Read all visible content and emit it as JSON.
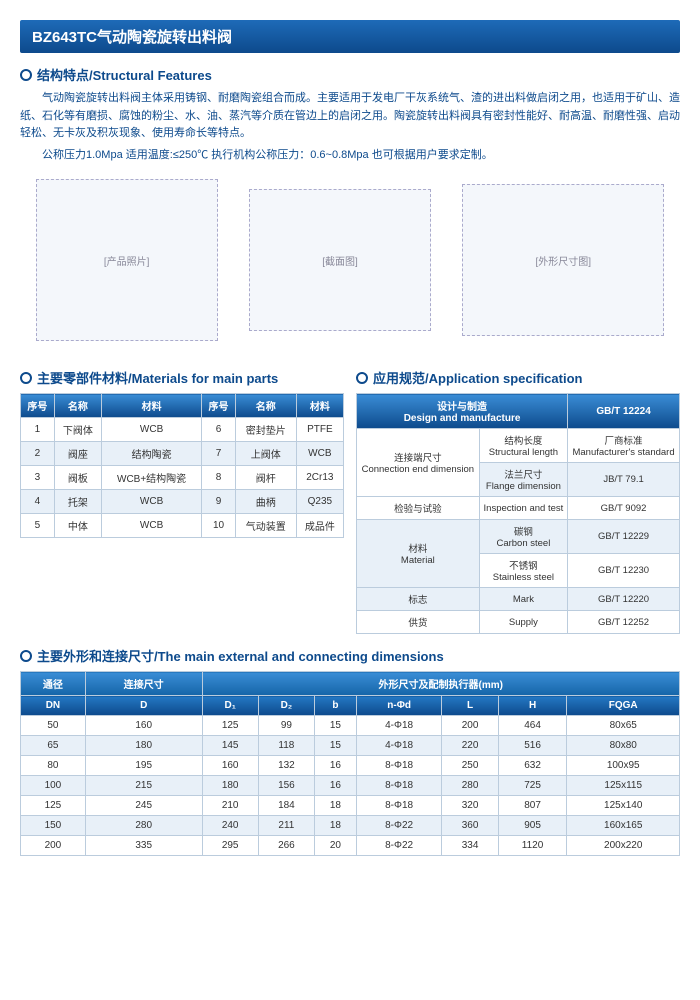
{
  "title": "BZ643TC气动陶瓷旋转出料阀",
  "s1": {
    "head": "结构特点/Structural Features",
    "p1": "气动陶瓷旋转出料阀主体采用铸钢、耐磨陶瓷组合而成。主要适用于发电厂干灰系统气、渣的进出料做启闭之用，也适用于矿山、造纸、石化等有磨损、腐蚀的粉尘、水、油、蒸汽等介质在管边上的启闭之用。陶瓷旋转出料阀具有密封性能好、耐高温、耐磨性强、启动轻松、无卡灰及积灰现象、使用寿命长等特点。",
    "p2": "公称压力1.0Mpa 适用温度:≤250℃  执行机构公称压力：0.6~0.8Mpa 也可根据用户要求定制。"
  },
  "imgs": {
    "a": "[产品照片]",
    "b": "[截面图]",
    "c": "[外形尺寸图]"
  },
  "mat": {
    "head": "主要零部件材料/Materials for main parts",
    "cols": [
      "序号",
      "名称",
      "材料",
      "序号",
      "名称",
      "材料"
    ],
    "rows": [
      [
        "1",
        "下阀体",
        "WCB",
        "6",
        "密封垫片",
        "PTFE"
      ],
      [
        "2",
        "阀座",
        "结构陶瓷",
        "7",
        "上阀体",
        "WCB"
      ],
      [
        "3",
        "阀板",
        "WCB+结构陶瓷",
        "8",
        "阀杆",
        "2Cr13"
      ],
      [
        "4",
        "托架",
        "WCB",
        "9",
        "曲柄",
        "Q235"
      ],
      [
        "5",
        "中体",
        "WCB",
        "10",
        "气动装置",
        "成品件"
      ]
    ]
  },
  "spec": {
    "head": "应用规范/Application specification",
    "h1": "设计与制造",
    "h1e": "Design and manufacture",
    "h2": "GB/T 12224",
    "rows": [
      [
        "连接端尺寸",
        "Connection end dimension",
        "结构长度",
        "Structural length",
        "厂商标准",
        "Manufacturer's standard"
      ],
      [
        "",
        "",
        "法兰尺寸",
        "Flange dimension",
        "JB/T 79.1",
        ""
      ],
      [
        "检验与试验",
        "",
        "Inspection and test",
        "",
        "GB/T 9092",
        ""
      ],
      [
        "材料",
        "Material",
        "碳钢",
        "Carbon steel",
        "GB/T 12229",
        ""
      ],
      [
        "",
        "",
        "不锈钢",
        "Stainless steel",
        "GB/T 12230",
        ""
      ],
      [
        "标志",
        "",
        "Mark",
        "",
        "GB/T 12220",
        ""
      ],
      [
        "供货",
        "",
        "Supply",
        "",
        "GB/T 12252",
        ""
      ]
    ]
  },
  "dim": {
    "head": "主要外形和连接尺寸/The main external and connecting dimensions",
    "h1a": "通径",
    "h1b": "连接尺寸",
    "h1c": "外形尺寸及配制执行器(mm)",
    "h2": [
      "DN",
      "D",
      "D₁",
      "D₂",
      "b",
      "n-Φd",
      "L",
      "H",
      "FQGA"
    ],
    "rows": [
      [
        "50",
        "160",
        "125",
        "99",
        "15",
        "4-Φ18",
        "200",
        "464",
        "80x65"
      ],
      [
        "65",
        "180",
        "145",
        "118",
        "15",
        "4-Φ18",
        "220",
        "516",
        "80x80"
      ],
      [
        "80",
        "195",
        "160",
        "132",
        "16",
        "8-Φ18",
        "250",
        "632",
        "100x95"
      ],
      [
        "100",
        "215",
        "180",
        "156",
        "16",
        "8-Φ18",
        "280",
        "725",
        "125x115"
      ],
      [
        "125",
        "245",
        "210",
        "184",
        "18",
        "8-Φ18",
        "320",
        "807",
        "125x140"
      ],
      [
        "150",
        "280",
        "240",
        "211",
        "18",
        "8-Φ22",
        "360",
        "905",
        "160x165"
      ],
      [
        "200",
        "335",
        "295",
        "266",
        "20",
        "8-Φ22",
        "334",
        "1120",
        "200x220"
      ]
    ]
  }
}
